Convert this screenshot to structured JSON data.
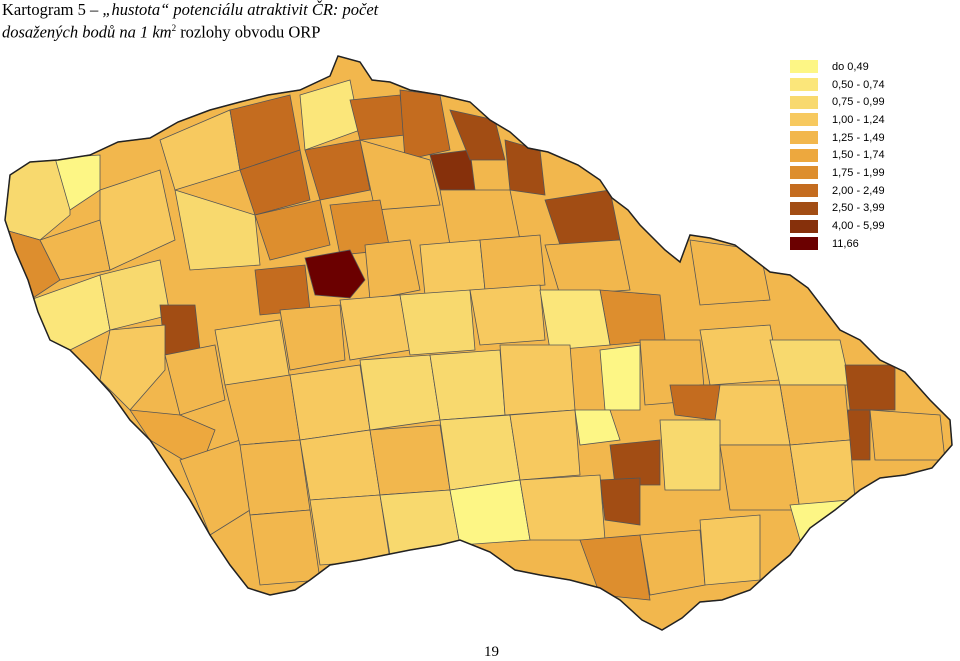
{
  "title": {
    "line1_prefix": "Kartogram 5 – ",
    "line1_emph": "„hustota“ potenciálu atraktivit ČR: počet",
    "line2_emph": "dosažených bodů na 1 km",
    "line2_sup": "2",
    "line2_suffix": " rozlohy obvodu ORP"
  },
  "legend": {
    "items": [
      {
        "label": "do 0,49",
        "color": "#fdf685"
      },
      {
        "label": "0,50 - 0,74",
        "color": "#fbe67a"
      },
      {
        "label": "0,75 - 0,99",
        "color": "#f8d96e"
      },
      {
        "label": "1,00 - 1,24",
        "color": "#f7c95f"
      },
      {
        "label": "1,25 - 1,49",
        "color": "#f2b74d"
      },
      {
        "label": "1,50 - 1,74",
        "color": "#eda83e"
      },
      {
        "label": "1,75 - 1,99",
        "color": "#dd8e2e"
      },
      {
        "label": "2,00 - 2,49",
        "color": "#c46c1f"
      },
      {
        "label": "2,50 - 3,99",
        "color": "#a24d14"
      },
      {
        "label": "4,00 - 5,99",
        "color": "#86300b"
      },
      {
        "label": "11,66",
        "color": "#6b0000"
      }
    ]
  },
  "page_number": "19"
}
